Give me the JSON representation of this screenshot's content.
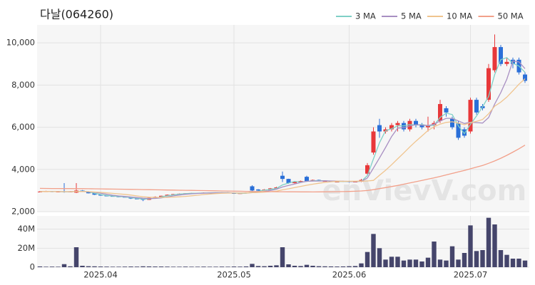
{
  "chart_data": {
    "type": "candlestick",
    "title": "다날(064260)",
    "watermark": "enVievV.com",
    "legend": "upper right",
    "grid": true,
    "up_color": "#e8383a",
    "down_color": "#2a6fd8",
    "volume_color": "#45456b",
    "categories": [
      null,
      null,
      null,
      null,
      null,
      null,
      null,
      null,
      null,
      null,
      "2025.04",
      null,
      null,
      null,
      null,
      null,
      null,
      null,
      null,
      null,
      null,
      null,
      null,
      null,
      null,
      null,
      null,
      null,
      null,
      null,
      null,
      null,
      "2025.05",
      null,
      null,
      null,
      null,
      null,
      null,
      null,
      null,
      null,
      null,
      null,
      null,
      null,
      null,
      null,
      null,
      null,
      null,
      "2025.06",
      null,
      null,
      null,
      null,
      null,
      null,
      null,
      null,
      null,
      null,
      null,
      null,
      null,
      null,
      null,
      null,
      null,
      null,
      null,
      "2025.07",
      null,
      null,
      null,
      null,
      null,
      null,
      null,
      null,
      null
    ],
    "ylim": [
      2000,
      10850
    ],
    "yticks": [
      {
        "value": 2000,
        "label": "2,000"
      },
      {
        "value": 4000,
        "label": "4,000"
      },
      {
        "value": 6000,
        "label": "6,000"
      },
      {
        "value": 8000,
        "label": "8,000"
      },
      {
        "value": 10000,
        "label": "10,000"
      }
    ],
    "volume_ylim": [
      0,
      54000000
    ],
    "volume_yticks": [
      0,
      {
        "value": 20000000,
        "label": "20M"
      },
      {
        "value": 40000000,
        "label": "40M"
      }
    ],
    "candles": {
      "open": [
        2940,
        2950,
        2960,
        2940,
        2960,
        2930,
        2900,
        3000,
        2960,
        2870,
        2800,
        2760,
        2740,
        2720,
        2700,
        2680,
        2620,
        2600,
        2560,
        2650,
        2700,
        2750,
        2800,
        2830,
        2850,
        2870,
        2880,
        2870,
        2900,
        2890,
        2900,
        2910,
        2880,
        2850,
        2870,
        3200,
        3050,
        3000,
        3050,
        3100,
        3700,
        3550,
        3350,
        3400,
        3650,
        3450,
        3500,
        3450,
        3450,
        3420,
        3420,
        3450,
        3400,
        3420,
        3800,
        4800,
        6100,
        5800,
        5900,
        6100,
        6200,
        5900,
        6300,
        6100,
        6000,
        6100,
        6300,
        6900,
        6400,
        6200,
        5900,
        5800,
        7300,
        7000,
        7300,
        8700,
        9800,
        9000,
        9200,
        9200,
        8500
      ],
      "high": [
        2980,
        2990,
        2980,
        2970,
        3350,
        2970,
        3350,
        3020,
        2970,
        2880,
        2810,
        2780,
        2750,
        2730,
        2710,
        2690,
        2630,
        2610,
        2660,
        2720,
        2760,
        2810,
        2840,
        2860,
        2880,
        2890,
        2890,
        2910,
        2910,
        2910,
        2920,
        2920,
        2890,
        2880,
        2910,
        3250,
        3070,
        3070,
        3120,
        3180,
        3900,
        3560,
        3420,
        3470,
        3700,
        3520,
        3520,
        3470,
        3460,
        3440,
        3460,
        3460,
        3430,
        3550,
        4300,
        6000,
        6400,
        6000,
        6200,
        6300,
        6300,
        6400,
        6400,
        6200,
        6500,
        6300,
        7300,
        7000,
        6500,
        6300,
        6000,
        7400,
        7400,
        7100,
        9000,
        10400,
        9900,
        9300,
        9300,
        9300,
        8600
      ],
      "low": [
        2920,
        2930,
        2920,
        2920,
        2900,
        2920,
        2880,
        2940,
        2860,
        2790,
        2750,
        2730,
        2710,
        2690,
        2670,
        2600,
        2590,
        2500,
        2550,
        2640,
        2690,
        2740,
        2790,
        2820,
        2840,
        2860,
        2860,
        2860,
        2880,
        2880,
        2890,
        2870,
        2840,
        2840,
        2860,
        2980,
        2980,
        2990,
        3040,
        3090,
        3400,
        3320,
        3340,
        3390,
        3420,
        3430,
        3440,
        3420,
        3400,
        3400,
        3400,
        3380,
        3390,
        3400,
        3750,
        4700,
        5500,
        5700,
        5800,
        5800,
        5800,
        5800,
        6000,
        5900,
        5800,
        5900,
        6200,
        6500,
        5900,
        5400,
        5500,
        5700,
        6600,
        6800,
        7200,
        8600,
        8900,
        8900,
        8800,
        8500,
        8100
      ],
      "close": [
        2950,
        2960,
        2940,
        2950,
        2930,
        2950,
        3000,
        2950,
        2870,
        2800,
        2760,
        2740,
        2720,
        2700,
        2680,
        2620,
        2600,
        2560,
        2650,
        2700,
        2750,
        2800,
        2830,
        2850,
        2870,
        2880,
        2870,
        2900,
        2890,
        2900,
        2910,
        2880,
        2850,
        2870,
        2900,
        3000,
        3000,
        3050,
        3100,
        3150,
        3550,
        3350,
        3400,
        3450,
        3450,
        3500,
        3450,
        3450,
        3420,
        3420,
        3450,
        3400,
        3420,
        3500,
        4200,
        5800,
        5800,
        5900,
        6100,
        6200,
        5900,
        6300,
        6100,
        6000,
        6100,
        6200,
        7100,
        6700,
        6000,
        5500,
        5600,
        7300,
        6700,
        6900,
        8800,
        9800,
        9000,
        9100,
        9000,
        8600,
        8200
      ]
    },
    "volume": [
      800000,
      500000,
      600000,
      500000,
      3200000,
      900000,
      21000000,
      1500000,
      1000000,
      900000,
      700000,
      600000,
      500000,
      500000,
      600000,
      700000,
      600000,
      900000,
      800000,
      700000,
      700000,
      600000,
      500000,
      500000,
      600000,
      500000,
      500000,
      600000,
      500000,
      500000,
      600000,
      500000,
      700000,
      600000,
      800000,
      3500000,
      1200000,
      1000000,
      1500000,
      2000000,
      21000000,
      3000000,
      1500000,
      1200000,
      2500000,
      1500000,
      1000000,
      900000,
      800000,
      700000,
      800000,
      1000000,
      1200000,
      4000000,
      16000000,
      35000000,
      20000000,
      8000000,
      11000000,
      11000000,
      7000000,
      8000000,
      8000000,
      6000000,
      10000000,
      27000000,
      8000000,
      7000000,
      22000000,
      8000000,
      15000000,
      44000000,
      17000000,
      18000000,
      52000000,
      45000000,
      18000000,
      13000000,
      9000000,
      9000000,
      7000000
    ],
    "series": [
      {
        "name": "3 MA",
        "color": "#7fd0c6",
        "values": [
          2950,
          2955,
          2950,
          2950,
          2940,
          2943,
          2960,
          2967,
          2940,
          2873,
          2810,
          2767,
          2740,
          2720,
          2700,
          2667,
          2633,
          2593,
          2603,
          2637,
          2700,
          2750,
          2793,
          2827,
          2850,
          2867,
          2873,
          2883,
          2887,
          2897,
          2900,
          2897,
          2880,
          2867,
          2873,
          2923,
          2967,
          3017,
          3050,
          3100,
          3267,
          3350,
          3433,
          3400,
          3433,
          3467,
          3467,
          3467,
          3440,
          3430,
          3430,
          3423,
          3423,
          3440,
          3707,
          4500,
          5267,
          5833,
          5933,
          6067,
          6067,
          6133,
          6100,
          6133,
          6067,
          6100,
          6467,
          6667,
          6600,
          6067,
          5700,
          6133,
          6533,
          6967,
          7467,
          8500,
          9200,
          9300,
          9033,
          8900,
          8600
        ]
      },
      {
        "name": "5 MA",
        "color": "#a88fc2",
        "values": [
          2950,
          2955,
          2950,
          2950,
          2946,
          2946,
          2954,
          2956,
          2940,
          2914,
          2876,
          2824,
          2778,
          2744,
          2720,
          2692,
          2664,
          2636,
          2622,
          2626,
          2652,
          2692,
          2746,
          2786,
          2820,
          2846,
          2860,
          2874,
          2882,
          2888,
          2894,
          2896,
          2886,
          2882,
          2882,
          2900,
          2920,
          2954,
          3004,
          3060,
          3170,
          3240,
          3310,
          3380,
          3440,
          3450,
          3450,
          3460,
          3454,
          3448,
          3438,
          3428,
          3422,
          3438,
          3594,
          4064,
          4544,
          5040,
          5560,
          5960,
          5980,
          6060,
          6120,
          6100,
          6080,
          6140,
          6300,
          6420,
          6420,
          6300,
          6180,
          6240,
          6220,
          6200,
          6460,
          7100,
          7640,
          8280,
          9140,
          9100,
          8780
        ]
      },
      {
        "name": "10 MA",
        "color": "#f0c48e",
        "values": [
          2950,
          2955,
          2950,
          2950,
          2946,
          2946,
          2954,
          2954,
          2946,
          2930,
          2911,
          2889,
          2866,
          2841,
          2816,
          2783,
          2743,
          2704,
          2682,
          2672,
          2671,
          2677,
          2688,
          2703,
          2722,
          2749,
          2776,
          2810,
          2834,
          2854,
          2870,
          2878,
          2880,
          2882,
          2885,
          2897,
          2910,
          2925,
          2946,
          2971,
          3035,
          3082,
          3137,
          3195,
          3250,
          3300,
          3345,
          3385,
          3417,
          3444,
          3434,
          3439,
          3441,
          3446,
          3451,
          3481,
          3724,
          3960,
          4224,
          4502,
          4780,
          5068,
          5338,
          5588,
          5848,
          6018,
          6148,
          6228,
          6260,
          6198,
          6118,
          6218,
          6278,
          6368,
          6638,
          6998,
          7188,
          7428,
          7728,
          8038,
          8300
        ]
      },
      {
        "name": "50 MA",
        "color": "#f2a08a",
        "values": [
          3100,
          3098,
          3096,
          3094,
          3092,
          3090,
          3088,
          3086,
          3084,
          3080,
          3076,
          3072,
          3068,
          3064,
          3060,
          3055,
          3050,
          3045,
          3040,
          3035,
          3030,
          3025,
          3020,
          3015,
          3010,
          3005,
          3000,
          2995,
          2990,
          2985,
          2980,
          2975,
          2970,
          2965,
          2960,
          2955,
          2950,
          2948,
          2946,
          2944,
          2942,
          2940,
          2938,
          2936,
          2934,
          2932,
          2934,
          2938,
          2942,
          2946,
          2950,
          2955,
          2965,
          2980,
          3000,
          3040,
          3090,
          3140,
          3190,
          3240,
          3300,
          3360,
          3420,
          3480,
          3540,
          3600,
          3670,
          3740,
          3810,
          3880,
          3950,
          4030,
          4110,
          4190,
          4290,
          4400,
          4530,
          4670,
          4820,
          4980,
          5150
        ]
      }
    ]
  }
}
